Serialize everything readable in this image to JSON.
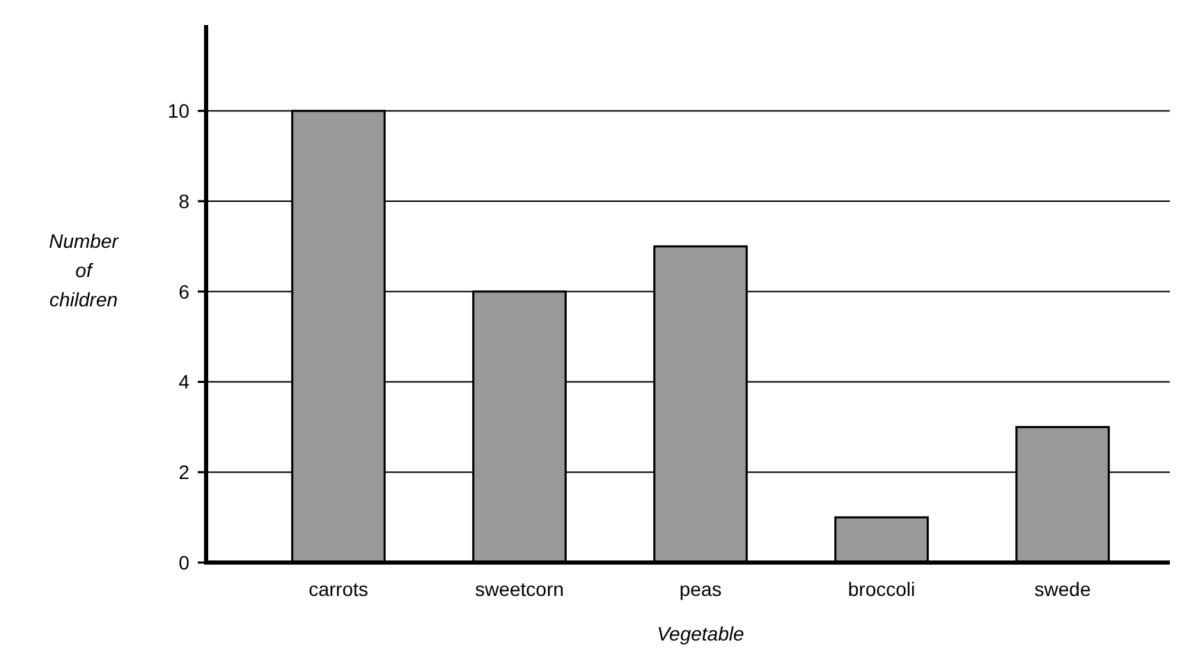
{
  "chart_data": {
    "type": "bar",
    "xlabel": "Vegetable",
    "ylabel": "Number of children",
    "categories": [
      "carrots",
      "sweetcorn",
      "peas",
      "broccoli",
      "swede"
    ],
    "values": [
      10,
      6,
      7,
      1,
      3
    ],
    "color": "#999999",
    "ylim": [
      0,
      11.9
    ],
    "yticks": [
      0,
      2,
      4,
      6,
      8,
      10
    ],
    "grid": "y"
  }
}
